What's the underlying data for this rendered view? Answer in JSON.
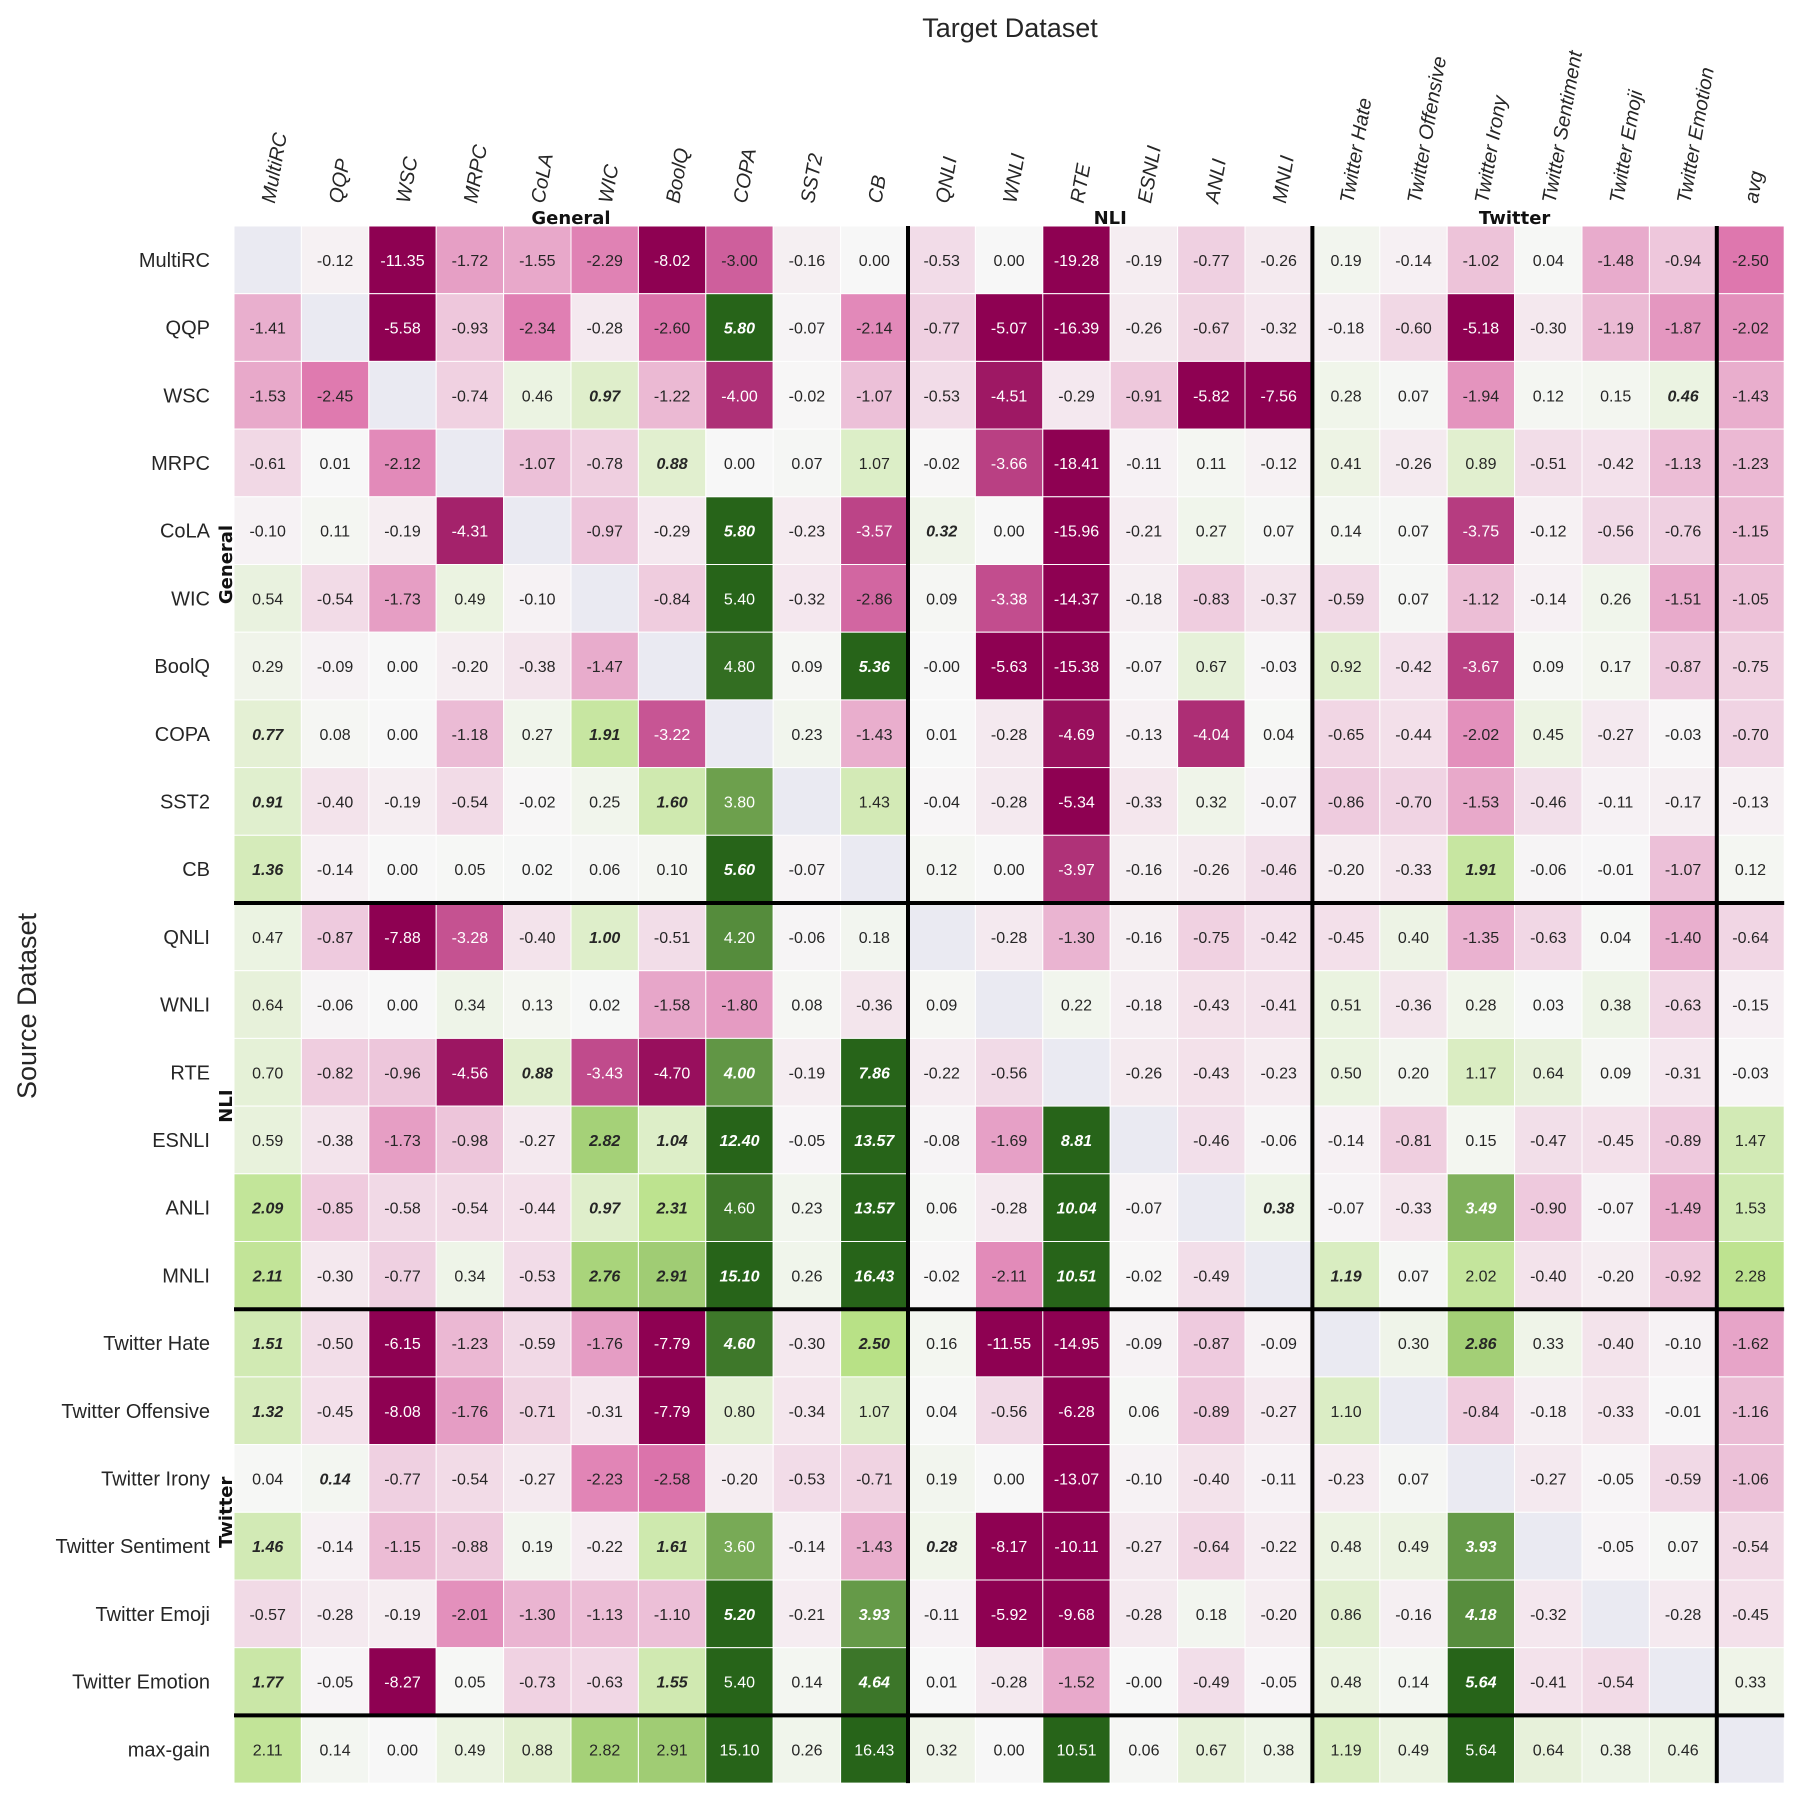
{
  "chart_data": {
    "type": "heatmap",
    "title": "Target Dataset",
    "xlabel": "Target Dataset",
    "ylabel": "Source Dataset",
    "x": [
      "MultiRC",
      "QQP",
      "WSC",
      "MRPC",
      "CoLA",
      "WIC",
      "BoolQ",
      "COPA",
      "SST2",
      "CB",
      "QNLI",
      "WNLI",
      "RTE",
      "ESNLI",
      "ANLI",
      "MNLI",
      "Twitter Hate",
      "Twitter Offensive",
      "Twitter Irony",
      "Twitter Sentiment",
      "Twitter Emoji",
      "Twitter Emotion",
      "avg"
    ],
    "y": [
      "MultiRC",
      "QQP",
      "WSC",
      "MRPC",
      "CoLA",
      "WIC",
      "BoolQ",
      "COPA",
      "SST2",
      "CB",
      "QNLI",
      "WNLI",
      "RTE",
      "ESNLI",
      "ANLI",
      "MNLI",
      "Twitter Hate",
      "Twitter Offensive",
      "Twitter Irony",
      "Twitter Sentiment",
      "Twitter Emoji",
      "Twitter Emotion",
      "max-gain"
    ],
    "col_groups": [
      {
        "name": "General",
        "start": 0,
        "end": 9
      },
      {
        "name": "NLI",
        "start": 10,
        "end": 15
      },
      {
        "name": "Twitter",
        "start": 16,
        "end": 21
      }
    ],
    "row_groups": [
      {
        "name": "General",
        "start": 0,
        "end": 9
      },
      {
        "name": "NLI",
        "start": 10,
        "end": 15
      },
      {
        "name": "Twitter",
        "start": 16,
        "end": 21
      }
    ],
    "colormap": "PiYG (pink = negative, green = positive)",
    "values": [
      [
        null,
        "-0.12",
        "-11.35",
        "-1.72",
        "-1.55",
        "-2.29",
        "-8.02",
        "-3.00",
        "-0.16",
        "0.00",
        "-0.53",
        "0.00",
        "-19.28",
        "-0.19",
        "-0.77",
        "-0.26",
        "0.19",
        "-0.14",
        "-1.02",
        "0.04",
        "-1.48",
        "-0.94",
        "-2.50"
      ],
      [
        "-1.41",
        null,
        "-5.58",
        "-0.93",
        "-2.34",
        "-0.28",
        "-2.60",
        "5.80",
        "-0.07",
        "-2.14",
        "-0.77",
        "-5.07",
        "-16.39",
        "-0.26",
        "-0.67",
        "-0.32",
        "-0.18",
        "-0.60",
        "-5.18",
        "-0.30",
        "-1.19",
        "-1.87",
        "-2.02"
      ],
      [
        "-1.53",
        "-2.45",
        null,
        "-0.74",
        "0.46",
        "0.97",
        "-1.22",
        "-4.00",
        "-0.02",
        "-1.07",
        "-0.53",
        "-4.51",
        "-0.29",
        "-0.91",
        "-5.82",
        "-7.56",
        "0.28",
        "0.07",
        "-1.94",
        "0.12",
        "0.15",
        "0.46",
        "-1.43"
      ],
      [
        "-0.61",
        "0.01",
        "-2.12",
        null,
        "-1.07",
        "-0.78",
        "0.88",
        "0.00",
        "0.07",
        "1.07",
        "-0.02",
        "-3.66",
        "-18.41",
        "-0.11",
        "0.11",
        "-0.12",
        "0.41",
        "-0.26",
        "0.89",
        "-0.51",
        "-0.42",
        "-1.13",
        "-1.23"
      ],
      [
        "-0.10",
        "0.11",
        "-0.19",
        "-4.31",
        null,
        "-0.97",
        "-0.29",
        "5.80",
        "-0.23",
        "-3.57",
        "0.32",
        "0.00",
        "-15.96",
        "-0.21",
        "0.27",
        "0.07",
        "0.14",
        "0.07",
        "-3.75",
        "-0.12",
        "-0.56",
        "-0.76",
        "-1.15"
      ],
      [
        "0.54",
        "-0.54",
        "-1.73",
        "0.49",
        "-0.10",
        null,
        "-0.84",
        "5.40",
        "-0.32",
        "-2.86",
        "0.09",
        "-3.38",
        "-14.37",
        "-0.18",
        "-0.83",
        "-0.37",
        "-0.59",
        "0.07",
        "-1.12",
        "-0.14",
        "0.26",
        "-1.51",
        "-1.05"
      ],
      [
        "0.29",
        "-0.09",
        "0.00",
        "-0.20",
        "-0.38",
        "-1.47",
        null,
        "4.80",
        "0.09",
        "5.36",
        "-0.00",
        "-5.63",
        "-15.38",
        "-0.07",
        "0.67",
        "-0.03",
        "0.92",
        "-0.42",
        "-3.67",
        "0.09",
        "0.17",
        "-0.87",
        "-0.75"
      ],
      [
        "0.77",
        "0.08",
        "0.00",
        "-1.18",
        "0.27",
        "1.91",
        "-3.22",
        null,
        "0.23",
        "-1.43",
        "0.01",
        "-0.28",
        "-4.69",
        "-0.13",
        "-4.04",
        "0.04",
        "-0.65",
        "-0.44",
        "-2.02",
        "0.45",
        "-0.27",
        "-0.03",
        "-0.70"
      ],
      [
        "0.91",
        "-0.40",
        "-0.19",
        "-0.54",
        "-0.02",
        "0.25",
        "1.60",
        "3.80",
        null,
        "1.43",
        "-0.04",
        "-0.28",
        "-5.34",
        "-0.33",
        "0.32",
        "-0.07",
        "-0.86",
        "-0.70",
        "-1.53",
        "-0.46",
        "-0.11",
        "-0.17",
        "-0.13"
      ],
      [
        "1.36",
        "-0.14",
        "0.00",
        "0.05",
        "0.02",
        "0.06",
        "0.10",
        "5.60",
        "-0.07",
        null,
        "0.12",
        "0.00",
        "-3.97",
        "-0.16",
        "-0.26",
        "-0.46",
        "-0.20",
        "-0.33",
        "1.91",
        "-0.06",
        "-0.01",
        "-1.07",
        "0.12"
      ],
      [
        "0.47",
        "-0.87",
        "-7.88",
        "-3.28",
        "-0.40",
        "1.00",
        "-0.51",
        "4.20",
        "-0.06",
        "0.18",
        null,
        "-0.28",
        "-1.30",
        "-0.16",
        "-0.75",
        "-0.42",
        "-0.45",
        "0.40",
        "-1.35",
        "-0.63",
        "0.04",
        "-1.40",
        "-0.64"
      ],
      [
        "0.64",
        "-0.06",
        "0.00",
        "0.34",
        "0.13",
        "0.02",
        "-1.58",
        "-1.80",
        "0.08",
        "-0.36",
        "0.09",
        null,
        "0.22",
        "-0.18",
        "-0.43",
        "-0.41",
        "0.51",
        "-0.36",
        "0.28",
        "0.03",
        "0.38",
        "-0.63",
        "-0.15"
      ],
      [
        "0.70",
        "-0.82",
        "-0.96",
        "-4.56",
        "0.88",
        "-3.43",
        "-4.70",
        "4.00",
        "-0.19",
        "7.86",
        "-0.22",
        "-0.56",
        null,
        "-0.26",
        "-0.43",
        "-0.23",
        "0.50",
        "0.20",
        "1.17",
        "0.64",
        "0.09",
        "-0.31",
        "-0.03"
      ],
      [
        "0.59",
        "-0.38",
        "-1.73",
        "-0.98",
        "-0.27",
        "2.82",
        "1.04",
        "12.40",
        "-0.05",
        "13.57",
        "-0.08",
        "-1.69",
        "8.81",
        null,
        "-0.46",
        "-0.06",
        "-0.14",
        "-0.81",
        "0.15",
        "-0.47",
        "-0.45",
        "-0.89",
        "1.47"
      ],
      [
        "2.09",
        "-0.85",
        "-0.58",
        "-0.54",
        "-0.44",
        "0.97",
        "2.31",
        "4.60",
        "0.23",
        "13.57",
        "0.06",
        "-0.28",
        "10.04",
        "-0.07",
        null,
        "0.38",
        "-0.07",
        "-0.33",
        "3.49",
        "-0.90",
        "-0.07",
        "-1.49",
        "1.53"
      ],
      [
        "2.11",
        "-0.30",
        "-0.77",
        "0.34",
        "-0.53",
        "2.76",
        "2.91",
        "15.10",
        "0.26",
        "16.43",
        "-0.02",
        "-2.11",
        "10.51",
        "-0.02",
        "-0.49",
        null,
        "1.19",
        "0.07",
        "2.02",
        "-0.40",
        "-0.20",
        "-0.92",
        "2.28"
      ],
      [
        "1.51",
        "-0.50",
        "-6.15",
        "-1.23",
        "-0.59",
        "-1.76",
        "-7.79",
        "4.60",
        "-0.30",
        "2.50",
        "0.16",
        "-11.55",
        "-14.95",
        "-0.09",
        "-0.87",
        "-0.09",
        null,
        "0.30",
        "2.86",
        "0.33",
        "-0.40",
        "-0.10",
        "-1.62"
      ],
      [
        "1.32",
        "-0.45",
        "-8.08",
        "-1.76",
        "-0.71",
        "-0.31",
        "-7.79",
        "0.80",
        "-0.34",
        "1.07",
        "0.04",
        "-0.56",
        "-6.28",
        "0.06",
        "-0.89",
        "-0.27",
        "1.10",
        null,
        "-0.84",
        "-0.18",
        "-0.33",
        "-0.01",
        "-1.16"
      ],
      [
        "0.04",
        "0.14",
        "-0.77",
        "-0.54",
        "-0.27",
        "-2.23",
        "-2.58",
        "-0.20",
        "-0.53",
        "-0.71",
        "0.19",
        "0.00",
        "-13.07",
        "-0.10",
        "-0.40",
        "-0.11",
        "-0.23",
        "0.07",
        null,
        "-0.27",
        "-0.05",
        "-0.59",
        "-1.06"
      ],
      [
        "1.46",
        "-0.14",
        "-1.15",
        "-0.88",
        "0.19",
        "-0.22",
        "1.61",
        "3.60",
        "-0.14",
        "-1.43",
        "0.28",
        "-8.17",
        "-10.11",
        "-0.27",
        "-0.64",
        "-0.22",
        "0.48",
        "0.49",
        "3.93",
        null,
        "-0.05",
        "0.07",
        "-0.54"
      ],
      [
        "-0.57",
        "-0.28",
        "-0.19",
        "-2.01",
        "-1.30",
        "-1.13",
        "-1.10",
        "5.20",
        "-0.21",
        "3.93",
        "-0.11",
        "-5.92",
        "-9.68",
        "-0.28",
        "0.18",
        "-0.20",
        "0.86",
        "-0.16",
        "4.18",
        "-0.32",
        null,
        "-0.28",
        "-0.45"
      ],
      [
        "1.77",
        "-0.05",
        "-8.27",
        "0.05",
        "-0.73",
        "-0.63",
        "1.55",
        "5.40",
        "0.14",
        "4.64",
        "0.01",
        "-0.28",
        "-1.52",
        "-0.00",
        "-0.49",
        "-0.05",
        "0.48",
        "0.14",
        "5.64",
        "-0.41",
        "-0.54",
        null,
        "0.33"
      ],
      [
        "2.11",
        "0.14",
        "0.00",
        "0.49",
        "0.88",
        "2.82",
        "2.91",
        "15.10",
        "0.26",
        "16.43",
        "0.32",
        "0.00",
        "10.51",
        "0.06",
        "0.67",
        "0.38",
        "1.19",
        "0.49",
        "5.64",
        "0.64",
        "0.38",
        "0.46",
        null
      ]
    ],
    "emphasized_cells": [
      [
        1,
        7
      ],
      [
        2,
        5
      ],
      [
        2,
        21
      ],
      [
        3,
        6
      ],
      [
        4,
        7
      ],
      [
        4,
        10
      ],
      [
        6,
        9
      ],
      [
        7,
        0
      ],
      [
        7,
        5
      ],
      [
        8,
        0
      ],
      [
        8,
        6
      ],
      [
        9,
        0
      ],
      [
        9,
        7
      ],
      [
        9,
        18
      ],
      [
        10,
        5
      ],
      [
        12,
        4
      ],
      [
        12,
        7
      ],
      [
        12,
        9
      ],
      [
        13,
        5
      ],
      [
        13,
        6
      ],
      [
        13,
        7
      ],
      [
        13,
        9
      ],
      [
        13,
        12
      ],
      [
        14,
        0
      ],
      [
        14,
        5
      ],
      [
        14,
        6
      ],
      [
        14,
        9
      ],
      [
        14,
        12
      ],
      [
        14,
        15
      ],
      [
        14,
        18
      ],
      [
        15,
        0
      ],
      [
        15,
        5
      ],
      [
        15,
        6
      ],
      [
        15,
        7
      ],
      [
        15,
        9
      ],
      [
        15,
        12
      ],
      [
        15,
        16
      ],
      [
        16,
        0
      ],
      [
        16,
        7
      ],
      [
        16,
        9
      ],
      [
        16,
        18
      ],
      [
        17,
        0
      ],
      [
        18,
        1
      ],
      [
        19,
        0
      ],
      [
        19,
        6
      ],
      [
        19,
        10
      ],
      [
        19,
        18
      ],
      [
        20,
        7
      ],
      [
        20,
        9
      ],
      [
        20,
        18
      ],
      [
        21,
        0
      ],
      [
        21,
        6
      ],
      [
        21,
        9
      ],
      [
        21,
        18
      ]
    ],
    "colors": {
      "strong_negative": "#8e0152",
      "negative": "#de77ae",
      "neutral": "#f7f7f7",
      "positive": "#b8e186",
      "strong_positive": "#276419",
      "empty_cell": "#eaeaf2",
      "separator": "#000000"
    }
  }
}
